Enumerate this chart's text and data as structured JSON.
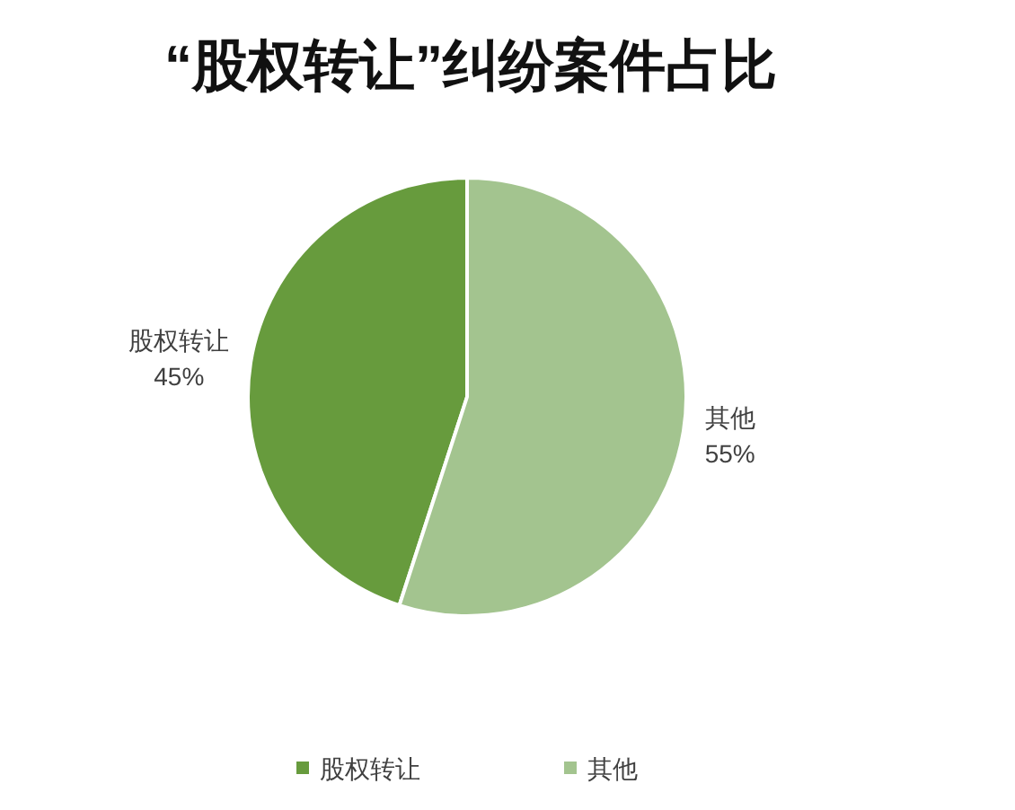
{
  "chart_data": {
    "type": "pie",
    "title": "“股权转让”纠纷案件占比",
    "categories": [
      "股权转让",
      "其他"
    ],
    "values": [
      45,
      55
    ],
    "value_labels": [
      "45%",
      "55%"
    ],
    "colors": [
      "#679b3d",
      "#a3c48f"
    ],
    "legend": "bottom"
  }
}
